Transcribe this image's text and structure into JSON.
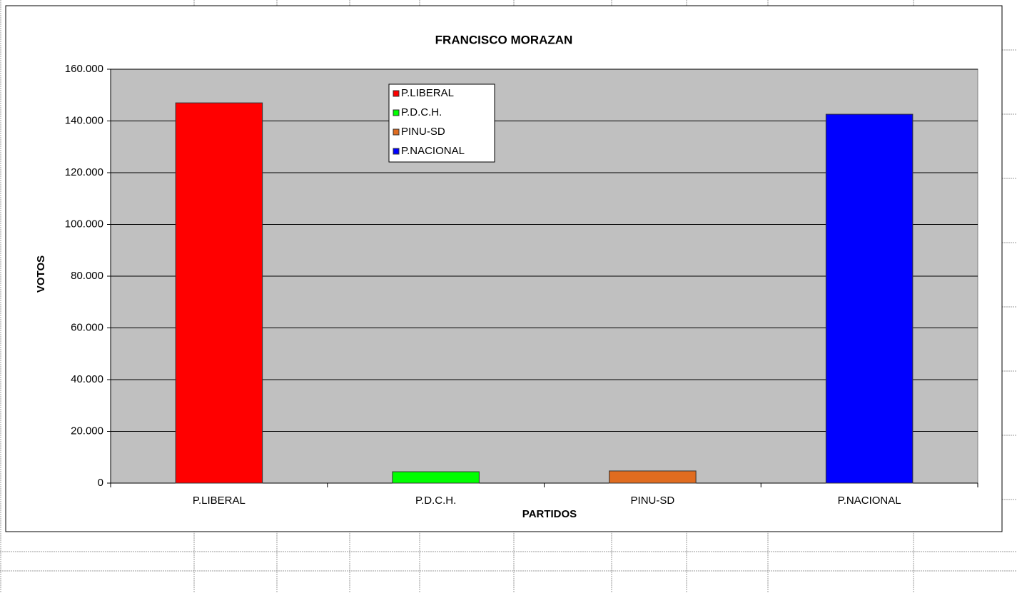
{
  "chart_data": {
    "type": "bar",
    "title": "FRANCISCO MORAZAN",
    "x_label": "PARTIDOS",
    "y_label": "VOTOS",
    "categories": [
      "P.LIBERAL",
      "P.D.C.H.",
      "PINU-SD",
      "P.NACIONAL"
    ],
    "values": [
      147000,
      4400,
      4700,
      142600
    ],
    "colors": [
      "#ff0000",
      "#00ff00",
      "#e06c20",
      "#0000ff"
    ],
    "ylim": [
      0,
      160000
    ],
    "yticks": [
      0,
      {
        "value": 20000,
        "label": "20.000"
      },
      {
        "value": 40000,
        "label": "40.000"
      },
      {
        "value": 60000,
        "label": "60.000"
      },
      {
        "value": 80000,
        "label": "80.000"
      },
      {
        "value": 100000,
        "label": "100.000"
      },
      {
        "value": 120000,
        "label": "120.000"
      },
      {
        "value": 140000,
        "label": "140.000"
      },
      {
        "value": 160000,
        "label": "160.000"
      }
    ],
    "grid": true,
    "legend": "top"
  }
}
